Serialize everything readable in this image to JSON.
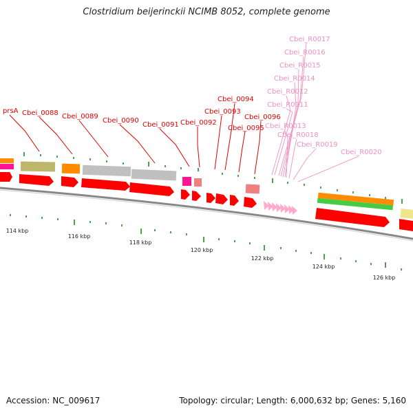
{
  "title": "Clostridium beijerinckii NCIMB 8052, complete genome",
  "footer": {
    "accession": "Accession: NC_009617",
    "topology": "Topology: circular; Length: 6,000,632 bp; Genes: 5,160"
  },
  "colors": {
    "cds": "#ff0000",
    "rrna": "#ffaacc",
    "backbone": "#888888",
    "label_red": "#e00000",
    "label_pink": "#f090c0",
    "orange": "#ff8c00",
    "olive": "#bdb76b",
    "gray": "#c0c0c0",
    "magenta": "#ff1493",
    "salmon": "#f08080",
    "green": "#44cc44",
    "khaki": "#f0e68c"
  },
  "scale": {
    "ticks": [
      {
        "label": "114 kbp"
      },
      {
        "label": "116 kbp"
      },
      {
        "label": "118 kbp"
      },
      {
        "label": "120 kbp"
      },
      {
        "label": "122 kbp"
      },
      {
        "label": "124 kbp"
      },
      {
        "label": "126 kbp"
      }
    ]
  },
  "genes": [
    {
      "label": "prsA",
      "color": "red"
    },
    {
      "label": "Cbei_0088",
      "color": "red"
    },
    {
      "label": "Cbei_0089",
      "color": "red"
    },
    {
      "label": "Cbei_0090",
      "color": "red"
    },
    {
      "label": "Cbei_0091",
      "color": "red"
    },
    {
      "label": "Cbei_0092",
      "color": "red"
    },
    {
      "label": "Cbei_0093",
      "color": "red"
    },
    {
      "label": "Cbei_0094",
      "color": "red"
    },
    {
      "label": "Cbei_0095",
      "color": "red"
    },
    {
      "label": "Cbei_0096",
      "color": "red"
    },
    {
      "label": "Cbei_R0017",
      "color": "pink"
    },
    {
      "label": "Cbei_R0016",
      "color": "pink"
    },
    {
      "label": "Cbei_R0015",
      "color": "pink"
    },
    {
      "label": "Cbei_R0014",
      "color": "pink"
    },
    {
      "label": "Cbei_R0012",
      "color": "pink"
    },
    {
      "label": "Cbei_R0011",
      "color": "pink"
    },
    {
      "label": "Cbei_R0013",
      "color": "pink"
    },
    {
      "label": "Cbei_R0018",
      "color": "pink"
    },
    {
      "label": "Cbei_R0019",
      "color": "pink"
    },
    {
      "label": "Cbei_R0020",
      "color": "pink"
    }
  ]
}
